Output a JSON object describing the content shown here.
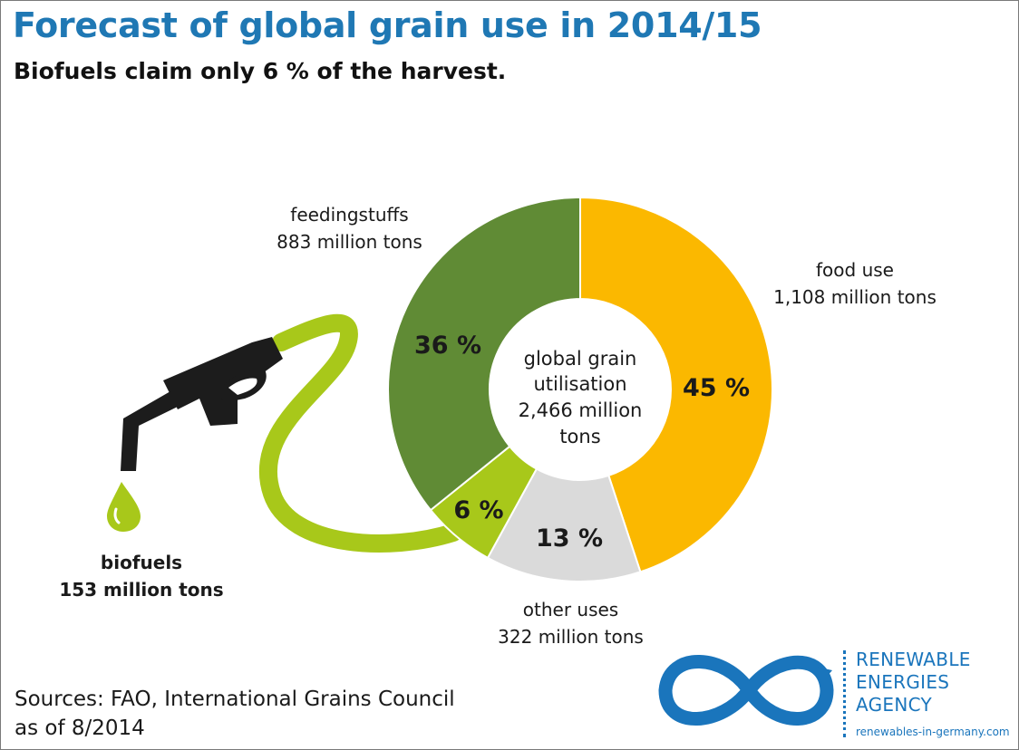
{
  "title": "Forecast of global grain use in 2014/15",
  "subtitle": "Biofuels claim only 6 % of the harvest.",
  "chart_data": {
    "type": "pie",
    "title": "Forecast of global grain use in 2014/15",
    "subtitle": "Biofuels claim only 6 % of the harvest.",
    "center_label": [
      "global grain",
      "utilisation",
      "2,466 million",
      "tons"
    ],
    "total": 2466,
    "unit": "million tons",
    "slices": [
      {
        "key": "food",
        "name": "food use",
        "amount_text": "1,108 million tons",
        "value": 1108,
        "percent": 45,
        "percent_label": "45 %",
        "color": "#fbb800"
      },
      {
        "key": "other",
        "name": "other uses",
        "amount_text": "322 million tons",
        "value": 322,
        "percent": 13,
        "percent_label": "13 %",
        "color": "#dadada"
      },
      {
        "key": "biofuels",
        "name": "biofuels",
        "amount_text": "153 million tons",
        "value": 153,
        "percent": 6,
        "percent_label": "6 %",
        "color": "#a8c81a"
      },
      {
        "key": "feed",
        "name": "feedingstuffs",
        "amount_text": "883 million tons",
        "value": 883,
        "percent": 36,
        "percent_label": "36 %",
        "color": "#608b35"
      }
    ]
  },
  "sources": {
    "line1": "Sources: FAO, International Grains Council",
    "line2": "as of 8/2014"
  },
  "logo": {
    "line1": "RENEWABLE",
    "line2": "ENERGIES",
    "line3": "AGENCY",
    "url": "renewables-in-germany.com",
    "color": "#1a75bc"
  }
}
